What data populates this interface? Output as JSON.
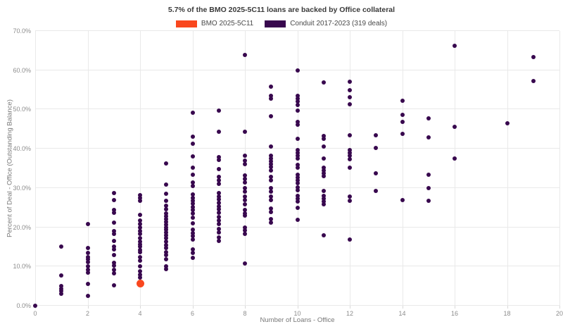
{
  "title": "5.7% of the BMO 2025-5C11 loans are backed by Office collateral",
  "legend": [
    {
      "label": "BMO 2025-5C11",
      "color": "#f9471e"
    },
    {
      "label": "Conduit 2017-2023 (319 deals)",
      "color": "#38084e"
    }
  ],
  "chart_data": {
    "type": "scatter",
    "title": "5.7% of the BMO 2025-5C11 loans are backed by Office collateral",
    "xlabel": "Number of Loans - Office",
    "ylabel": "Percent of Deal - Office (Outstanding Balance)",
    "xlim": [
      0,
      20
    ],
    "ylim": [
      0,
      70
    ],
    "x_ticks": [
      "0",
      "2",
      "4",
      "6",
      "8",
      "10",
      "12",
      "14",
      "16",
      "18",
      "20"
    ],
    "y_ticks": [
      "0.0%",
      "10.0%",
      "20.0%",
      "30.0%",
      "40.0%",
      "50.0%",
      "60.0%",
      "70.0%"
    ],
    "grid": true,
    "legend_position": "top-center",
    "series": [
      {
        "name": "BMO 2025-5C11",
        "color": "#f9471e",
        "marker_size": 11,
        "points": [
          [
            4,
            5.7
          ]
        ]
      },
      {
        "name": "Conduit 2017-2023 (319 deals)",
        "color": "#38084e",
        "marker_size": 6,
        "points": [
          [
            0,
            0.0
          ],
          [
            1,
            15.1
          ],
          [
            1,
            7.8
          ],
          [
            1,
            5.1
          ],
          [
            1,
            4.4
          ],
          [
            1,
            3.7
          ],
          [
            1,
            3.0
          ],
          [
            2,
            20.9
          ],
          [
            2,
            14.7
          ],
          [
            2,
            13.5
          ],
          [
            2,
            12.4
          ],
          [
            2,
            11.8
          ],
          [
            2,
            11.2
          ],
          [
            2,
            10.0
          ],
          [
            2,
            9.1
          ],
          [
            2,
            8.5
          ],
          [
            2,
            5.5
          ],
          [
            2,
            2.5
          ],
          [
            3,
            28.8
          ],
          [
            3,
            26.9
          ],
          [
            3,
            24.4
          ],
          [
            3,
            23.7
          ],
          [
            3,
            21.2
          ],
          [
            3,
            19.0
          ],
          [
            3,
            18.3
          ],
          [
            3,
            16.5
          ],
          [
            3,
            15.1
          ],
          [
            3,
            14.3
          ],
          [
            3,
            12.9
          ],
          [
            3,
            11.0
          ],
          [
            3,
            10.2
          ],
          [
            3,
            9.2
          ],
          [
            3,
            8.3
          ],
          [
            3,
            5.2
          ],
          [
            4,
            28.2
          ],
          [
            4,
            27.5
          ],
          [
            4,
            26.8
          ],
          [
            4,
            23.2
          ],
          [
            4,
            21.7
          ],
          [
            4,
            20.8
          ],
          [
            4,
            19.9
          ],
          [
            4,
            19.1
          ],
          [
            4,
            18.3
          ],
          [
            4,
            17.2
          ],
          [
            4,
            16.3
          ],
          [
            4,
            15.6
          ],
          [
            4,
            15.1
          ],
          [
            4,
            14.2
          ],
          [
            4,
            13.6
          ],
          [
            4,
            12.4
          ],
          [
            4,
            11.5
          ],
          [
            4,
            10.0
          ],
          [
            4,
            8.8
          ],
          [
            4,
            7.9
          ],
          [
            4,
            7.2
          ],
          [
            5,
            36.2
          ],
          [
            5,
            30.9
          ],
          [
            5,
            28.5
          ],
          [
            5,
            26.7
          ],
          [
            5,
            25.5
          ],
          [
            5,
            24.6
          ],
          [
            5,
            23.5
          ],
          [
            5,
            22.8
          ],
          [
            5,
            22.1
          ],
          [
            5,
            21.4
          ],
          [
            5,
            20.7
          ],
          [
            5,
            20.0
          ],
          [
            5,
            19.3
          ],
          [
            5,
            18.6
          ],
          [
            5,
            18.0
          ],
          [
            5,
            17.2
          ],
          [
            5,
            16.4
          ],
          [
            5,
            15.5
          ],
          [
            5,
            14.7
          ],
          [
            5,
            13.7
          ],
          [
            5,
            12.9
          ],
          [
            5,
            11.9
          ],
          [
            5,
            10.0
          ],
          [
            5,
            9.4
          ],
          [
            6,
            49.2
          ],
          [
            6,
            43.0
          ],
          [
            6,
            41.3
          ],
          [
            6,
            38.1
          ],
          [
            6,
            35.1
          ],
          [
            6,
            33.3
          ],
          [
            6,
            31.5
          ],
          [
            6,
            30.5
          ],
          [
            6,
            28.4
          ],
          [
            6,
            27.5
          ],
          [
            6,
            26.7
          ],
          [
            6,
            26.0
          ],
          [
            6,
            25.1
          ],
          [
            6,
            24.4
          ],
          [
            6,
            23.5
          ],
          [
            6,
            22.4
          ],
          [
            6,
            21.0
          ],
          [
            6,
            19.4
          ],
          [
            6,
            18.5
          ],
          [
            6,
            17.7
          ],
          [
            6,
            16.9
          ],
          [
            6,
            14.4
          ],
          [
            6,
            13.5
          ],
          [
            6,
            12.2
          ],
          [
            7,
            49.8
          ],
          [
            7,
            44.3
          ],
          [
            7,
            37.9
          ],
          [
            7,
            37.1
          ],
          [
            7,
            34.8
          ],
          [
            7,
            32.8
          ],
          [
            7,
            32.0
          ],
          [
            7,
            31.1
          ],
          [
            7,
            28.7
          ],
          [
            7,
            27.8
          ],
          [
            7,
            27.1
          ],
          [
            7,
            26.2
          ],
          [
            7,
            25.3
          ],
          [
            7,
            24.6
          ],
          [
            7,
            23.7
          ],
          [
            7,
            22.6
          ],
          [
            7,
            21.7
          ],
          [
            7,
            20.8
          ],
          [
            7,
            19.6
          ],
          [
            7,
            18.7
          ],
          [
            7,
            17.4
          ],
          [
            7,
            16.5
          ],
          [
            8,
            63.9
          ],
          [
            8,
            44.3
          ],
          [
            8,
            38.2
          ],
          [
            8,
            36.9
          ],
          [
            8,
            36.1
          ],
          [
            8,
            33.2
          ],
          [
            8,
            32.3
          ],
          [
            8,
            31.4
          ],
          [
            8,
            30.0
          ],
          [
            8,
            29.1
          ],
          [
            8,
            27.8
          ],
          [
            8,
            26.9
          ],
          [
            8,
            25.8
          ],
          [
            8,
            24.4
          ],
          [
            8,
            23.6
          ],
          [
            8,
            22.9
          ],
          [
            8,
            20.0
          ],
          [
            8,
            19.2
          ],
          [
            8,
            18.3
          ],
          [
            8,
            10.8
          ],
          [
            9,
            55.8
          ],
          [
            9,
            53.5
          ],
          [
            9,
            52.8
          ],
          [
            9,
            48.3
          ],
          [
            9,
            40.6
          ],
          [
            9,
            38.2
          ],
          [
            9,
            37.5
          ],
          [
            9,
            36.8
          ],
          [
            9,
            36.1
          ],
          [
            9,
            35.4
          ],
          [
            9,
            34.5
          ],
          [
            9,
            32.8
          ],
          [
            9,
            32.0
          ],
          [
            9,
            29.9
          ],
          [
            9,
            29.0
          ],
          [
            9,
            27.8
          ],
          [
            9,
            26.9
          ],
          [
            9,
            24.8
          ],
          [
            9,
            23.9
          ],
          [
            9,
            22.1
          ],
          [
            9,
            21.2
          ],
          [
            10,
            59.9
          ],
          [
            10,
            53.5
          ],
          [
            10,
            52.7
          ],
          [
            10,
            52.0
          ],
          [
            10,
            51.2
          ],
          [
            10,
            49.8
          ],
          [
            10,
            46.9
          ],
          [
            10,
            46.2
          ],
          [
            10,
            42.6
          ],
          [
            10,
            39.7
          ],
          [
            10,
            39.0
          ],
          [
            10,
            38.2
          ],
          [
            10,
            37.5
          ],
          [
            10,
            35.9
          ],
          [
            10,
            35.1
          ],
          [
            10,
            33.4
          ],
          [
            10,
            32.7
          ],
          [
            10,
            32.0
          ],
          [
            10,
            31.2
          ],
          [
            10,
            30.2
          ],
          [
            10,
            29.4
          ],
          [
            10,
            28.0
          ],
          [
            10,
            27.3
          ],
          [
            10,
            26.6
          ],
          [
            10,
            25.0
          ],
          [
            10,
            21.9
          ],
          [
            11,
            56.9
          ],
          [
            11,
            43.3
          ],
          [
            11,
            42.6
          ],
          [
            11,
            40.5
          ],
          [
            11,
            37.5
          ],
          [
            11,
            35.2
          ],
          [
            11,
            34.5
          ],
          [
            11,
            33.7
          ],
          [
            11,
            33.0
          ],
          [
            11,
            29.3
          ],
          [
            11,
            28.0
          ],
          [
            11,
            27.3
          ],
          [
            11,
            26.6
          ],
          [
            11,
            25.8
          ],
          [
            11,
            17.9
          ],
          [
            12,
            57.1
          ],
          [
            12,
            54.9
          ],
          [
            12,
            53.1
          ],
          [
            12,
            51.3
          ],
          [
            12,
            43.5
          ],
          [
            12,
            39.7
          ],
          [
            12,
            39.0
          ],
          [
            12,
            38.2
          ],
          [
            12,
            37.4
          ],
          [
            12,
            35.1
          ],
          [
            12,
            27.8
          ],
          [
            12,
            26.8
          ],
          [
            12,
            16.9
          ],
          [
            13,
            43.4
          ],
          [
            13,
            40.2
          ],
          [
            13,
            33.7
          ],
          [
            13,
            29.3
          ],
          [
            14,
            52.2
          ],
          [
            14,
            48.6
          ],
          [
            14,
            46.8
          ],
          [
            14,
            43.8
          ],
          [
            14,
            27.0
          ],
          [
            15,
            47.8
          ],
          [
            15,
            42.9
          ],
          [
            15,
            33.3
          ],
          [
            15,
            29.9
          ],
          [
            15,
            26.8
          ],
          [
            16,
            66.2
          ],
          [
            16,
            45.6
          ],
          [
            16,
            37.5
          ],
          [
            18,
            46.5
          ],
          [
            19,
            63.4
          ],
          [
            19,
            57.3
          ]
        ]
      }
    ]
  }
}
